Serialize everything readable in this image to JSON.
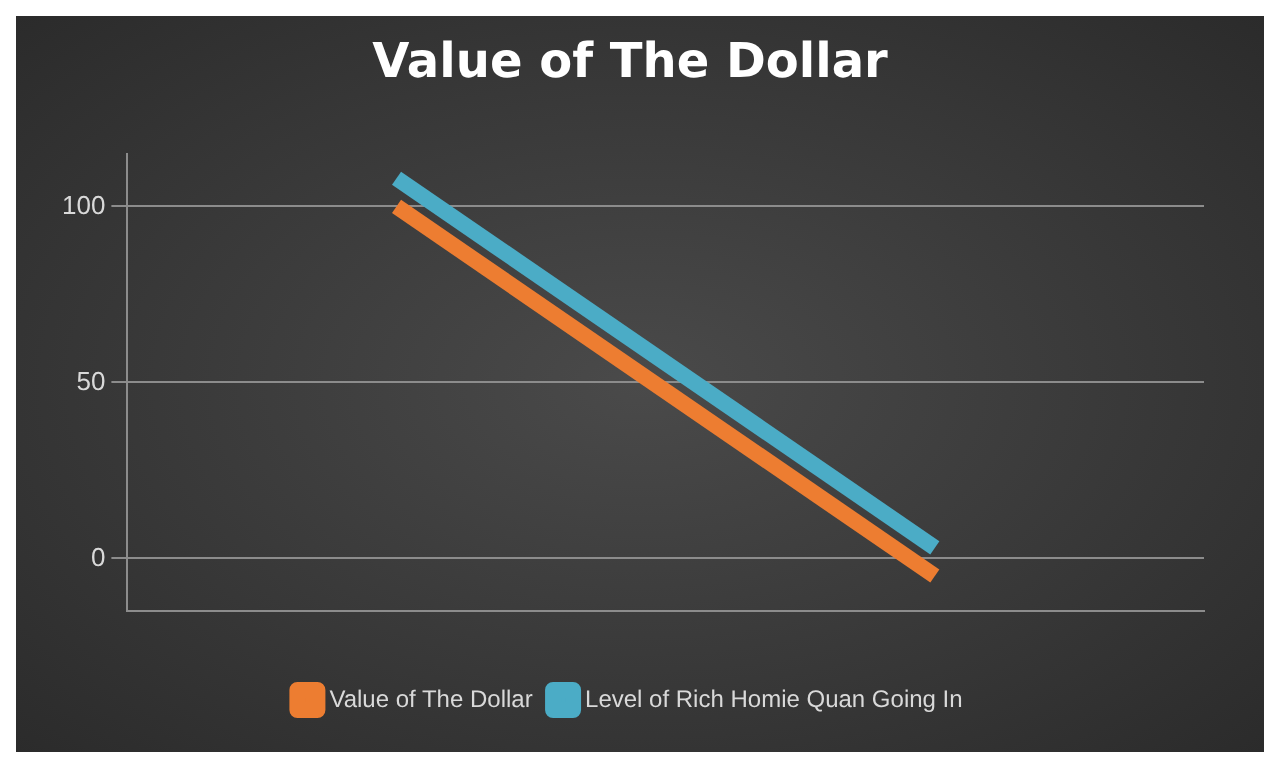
{
  "chart_data": {
    "type": "line",
    "title": "Value of The Dollar",
    "categories": [
      null,
      null
    ],
    "series": [
      {
        "name": "Value of The Dollar",
        "color": "#ed7d31",
        "values": [
          100,
          -5
        ]
      },
      {
        "name": "Level of Rich Homie Quan Going In",
        "color": "#4bacc6",
        "values": [
          108,
          3
        ]
      }
    ],
    "ylim": [
      -15,
      115
    ],
    "yticks": [
      0,
      50,
      100
    ],
    "grid": "y",
    "legend": "bottom",
    "marker": "none",
    "line_style": "solid"
  }
}
